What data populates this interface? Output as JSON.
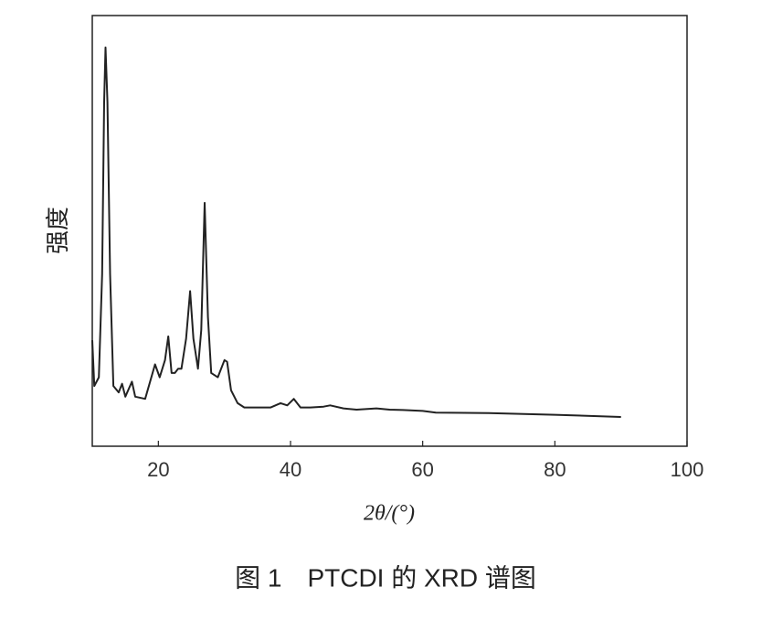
{
  "chart_data": {
    "type": "line",
    "caption": "图 1　PTCDI 的 XRD 谱图",
    "x_label": "2θ/(°)",
    "y_label": "强度",
    "xlim": [
      10,
      100
    ],
    "xticks": [
      20,
      40,
      60,
      80,
      100
    ],
    "ylim": [
      0,
      100
    ],
    "series": [
      {
        "name": "PTCDI",
        "color": "#222222",
        "x": [
          10,
          10.3,
          11,
          11.5,
          11.8,
          12.0,
          12.3,
          12.7,
          13.2,
          14,
          14.5,
          15,
          16,
          16.5,
          18,
          19.5,
          20.2,
          21,
          21.5,
          22,
          22.5,
          23,
          23.5,
          24.2,
          24.8,
          25.3,
          26,
          26.5,
          27,
          27.5,
          28,
          29,
          30,
          30.4,
          31,
          32,
          33,
          35,
          37,
          38.5,
          39.5,
          40.5,
          41.5,
          43,
          45,
          46,
          48,
          50,
          53,
          55,
          57,
          60,
          62,
          70,
          80,
          90
        ],
        "values": [
          24.6,
          14,
          16,
          40,
          80,
          92.6,
          80,
          40,
          14,
          12.5,
          14.5,
          11.5,
          15,
          11.5,
          11,
          19,
          16,
          20,
          25.5,
          17,
          17,
          18,
          18,
          25,
          36,
          25,
          18,
          27,
          56.5,
          30,
          17,
          16,
          20,
          19.6,
          13,
          10,
          9,
          9,
          9,
          10,
          9.5,
          11,
          9,
          9,
          9.2,
          9.5,
          8.8,
          8.5,
          8.8,
          8.5,
          8.4,
          8.2,
          7.8,
          7.7,
          7.3,
          6.8
        ]
      }
    ]
  }
}
